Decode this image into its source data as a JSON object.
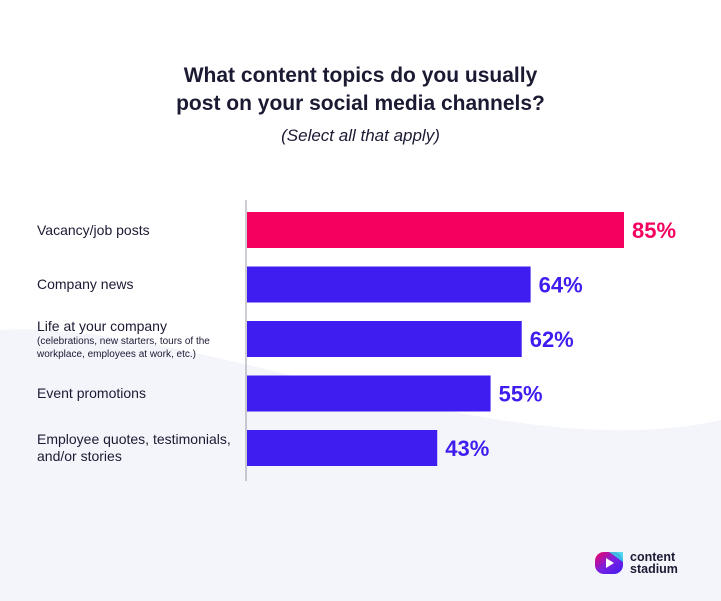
{
  "chart_data": {
    "type": "bar",
    "orientation": "horizontal",
    "title_lines": [
      "What content topics do you usually",
      "post on your social media channels?"
    ],
    "subtitle": "(Select all that apply)",
    "categories": [
      {
        "label": "Vacancy/job posts",
        "note": ""
      },
      {
        "label": "Company news",
        "note": ""
      },
      {
        "label": "Life at your company",
        "note": "(celebrations, new starters, tours of the workplace, employees at work, etc.)"
      },
      {
        "label": "Event promotions",
        "note": ""
      },
      {
        "label": "Employee quotes, testimonials, and/or stories",
        "note": ""
      }
    ],
    "values": [
      85,
      64,
      62,
      55,
      43
    ],
    "value_labels": [
      "85%",
      "64%",
      "62%",
      "55%",
      "43%"
    ],
    "unit": "%",
    "xlim": [
      0,
      100
    ],
    "grid": false,
    "colors": {
      "highlight": "#f5005f",
      "default": "#3f1df0",
      "axis": "#9a9aa6",
      "background_swoosh": "#f3f5fb"
    }
  },
  "brand": {
    "line1": "content",
    "line2": "stadium"
  }
}
